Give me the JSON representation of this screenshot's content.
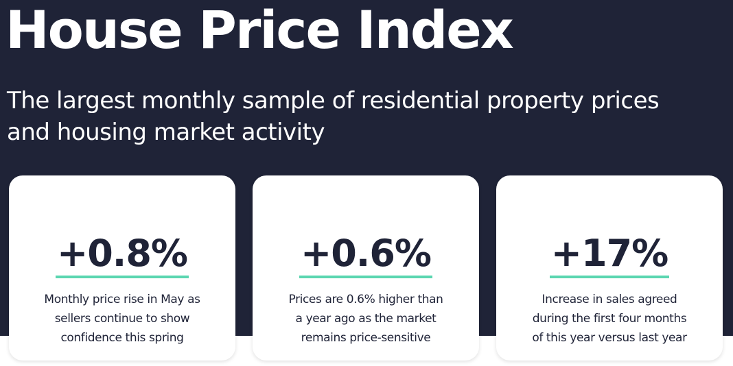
{
  "header": {
    "title": "House Price Index",
    "subtitle_lines": [
      "The largest monthly sample of residential property prices",
      "and housing market activity"
    ]
  },
  "cards": [
    {
      "value": "+0.8%",
      "description_lines": [
        "Monthly price rise in May as",
        "sellers continue to show",
        "confidence this spring"
      ]
    },
    {
      "value": "+0.6%",
      "description_lines": [
        "Prices are 0.6% higher than",
        "a year ago as the market",
        "remains price-sensitive"
      ]
    },
    {
      "value": "+17%",
      "description_lines": [
        "Increase in sales agreed",
        "during the first four months",
        "of this year versus last year"
      ]
    }
  ],
  "colors": {
    "background_navy": "#1f2337",
    "accent_underline": "#5bd6b0",
    "card_background": "#ffffff"
  }
}
